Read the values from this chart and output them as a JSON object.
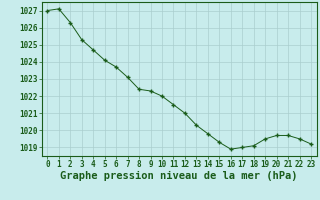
{
  "x": [
    0,
    1,
    2,
    3,
    4,
    5,
    6,
    7,
    8,
    9,
    10,
    11,
    12,
    13,
    14,
    15,
    16,
    17,
    18,
    19,
    20,
    21,
    22,
    23
  ],
  "y": [
    1027.0,
    1027.1,
    1026.3,
    1025.3,
    1024.7,
    1024.1,
    1023.7,
    1023.1,
    1022.4,
    1022.3,
    1022.0,
    1021.5,
    1021.0,
    1020.3,
    1019.8,
    1019.3,
    1018.9,
    1019.0,
    1019.1,
    1019.5,
    1019.7,
    1019.7,
    1019.5,
    1019.2
  ],
  "line_color": "#1a5c1a",
  "marker": "+",
  "bg_color": "#c8ecec",
  "grid_color": "#aacece",
  "label_color": "#1a5c1a",
  "xlabel": "Graphe pression niveau de la mer (hPa)",
  "ylim_min": 1018.5,
  "ylim_max": 1027.5,
  "tick_fontsize": 5.5,
  "xlabel_fontsize": 7.5
}
